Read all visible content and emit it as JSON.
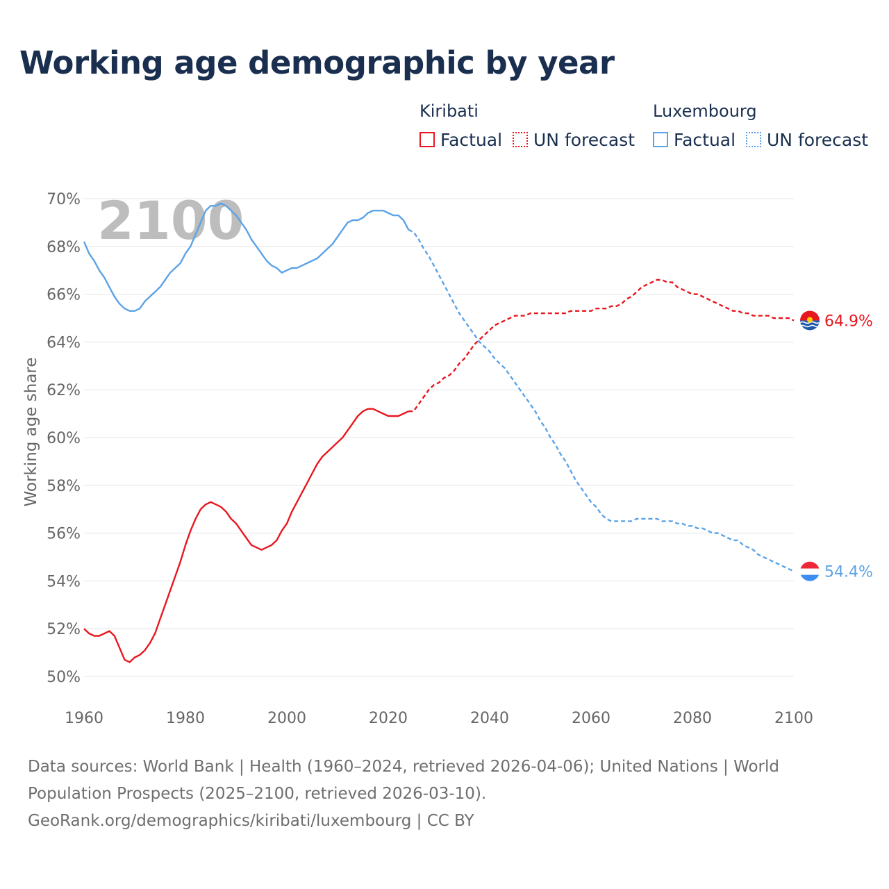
{
  "title": "Working age demographic by year",
  "legend": {
    "groups": [
      {
        "name": "Kiribati",
        "color": "#e8171f",
        "factual_label": "Factual",
        "forecast_label": "UN forecast"
      },
      {
        "name": "Luxembourg",
        "color": "#5ba3e6",
        "factual_label": "Factual",
        "forecast_label": "UN forecast"
      }
    ]
  },
  "footer": {
    "line1": "Data sources: World Bank | Health (1960–2024, retrieved 2026-04-06); United Nations | World",
    "line2": "Population Prospects (2025–2100, retrieved 2026-03-10).",
    "line3": "GeoRank.org/demographics/kiribati/luxembourg | CC BY"
  },
  "chart_data": {
    "type": "line",
    "title": "Working age demographic by year",
    "year_overlay": "2100",
    "xlabel": "",
    "ylabel": "Working age share",
    "xlim": [
      1960,
      2100
    ],
    "ylim": [
      49.5,
      70.5
    ],
    "x_ticks": [
      1960,
      1980,
      2000,
      2020,
      2040,
      2060,
      2080,
      2100
    ],
    "x_tick_labels": [
      "1960",
      "1980",
      "2000",
      "2020",
      "2040",
      "2060",
      "2080",
      "2100"
    ],
    "y_ticks": [
      50,
      52,
      54,
      56,
      58,
      60,
      62,
      64,
      66,
      68,
      70
    ],
    "y_tick_labels": [
      "50%",
      "52%",
      "54%",
      "56%",
      "58%",
      "60%",
      "62%",
      "64%",
      "66%",
      "68%",
      "70%"
    ],
    "factual_end_year": 2024,
    "series": [
      {
        "name": "Kiribati",
        "color": "#e8171f",
        "end_label": "64.9%",
        "points": [
          [
            1960,
            52.0
          ],
          [
            1961,
            51.8
          ],
          [
            1962,
            51.7
          ],
          [
            1963,
            51.7
          ],
          [
            1964,
            51.8
          ],
          [
            1965,
            51.9
          ],
          [
            1966,
            51.7
          ],
          [
            1967,
            51.2
          ],
          [
            1968,
            50.7
          ],
          [
            1969,
            50.6
          ],
          [
            1970,
            50.8
          ],
          [
            1971,
            50.9
          ],
          [
            1972,
            51.1
          ],
          [
            1973,
            51.4
          ],
          [
            1974,
            51.8
          ],
          [
            1975,
            52.4
          ],
          [
            1976,
            53.0
          ],
          [
            1977,
            53.6
          ],
          [
            1978,
            54.2
          ],
          [
            1979,
            54.8
          ],
          [
            1980,
            55.5
          ],
          [
            1981,
            56.1
          ],
          [
            1982,
            56.6
          ],
          [
            1983,
            57.0
          ],
          [
            1984,
            57.2
          ],
          [
            1985,
            57.3
          ],
          [
            1986,
            57.2
          ],
          [
            1987,
            57.1
          ],
          [
            1988,
            56.9
          ],
          [
            1989,
            56.6
          ],
          [
            1990,
            56.4
          ],
          [
            1991,
            56.1
          ],
          [
            1992,
            55.8
          ],
          [
            1993,
            55.5
          ],
          [
            1994,
            55.4
          ],
          [
            1995,
            55.3
          ],
          [
            1996,
            55.4
          ],
          [
            1997,
            55.5
          ],
          [
            1998,
            55.7
          ],
          [
            1999,
            56.1
          ],
          [
            2000,
            56.4
          ],
          [
            2001,
            56.9
          ],
          [
            2002,
            57.3
          ],
          [
            2003,
            57.7
          ],
          [
            2004,
            58.1
          ],
          [
            2005,
            58.5
          ],
          [
            2006,
            58.9
          ],
          [
            2007,
            59.2
          ],
          [
            2008,
            59.4
          ],
          [
            2009,
            59.6
          ],
          [
            2010,
            59.8
          ],
          [
            2011,
            60.0
          ],
          [
            2012,
            60.3
          ],
          [
            2013,
            60.6
          ],
          [
            2014,
            60.9
          ],
          [
            2015,
            61.1
          ],
          [
            2016,
            61.2
          ],
          [
            2017,
            61.2
          ],
          [
            2018,
            61.1
          ],
          [
            2019,
            61.0
          ],
          [
            2020,
            60.9
          ],
          [
            2021,
            60.9
          ],
          [
            2022,
            60.9
          ],
          [
            2023,
            61.0
          ],
          [
            2024,
            61.1
          ],
          [
            2025,
            61.1
          ],
          [
            2026,
            61.4
          ],
          [
            2027,
            61.7
          ],
          [
            2028,
            62.0
          ],
          [
            2029,
            62.2
          ],
          [
            2030,
            62.3
          ],
          [
            2031,
            62.5
          ],
          [
            2032,
            62.6
          ],
          [
            2033,
            62.8
          ],
          [
            2034,
            63.1
          ],
          [
            2035,
            63.3
          ],
          [
            2036,
            63.6
          ],
          [
            2037,
            63.9
          ],
          [
            2038,
            64.1
          ],
          [
            2039,
            64.3
          ],
          [
            2040,
            64.5
          ],
          [
            2041,
            64.7
          ],
          [
            2042,
            64.8
          ],
          [
            2043,
            64.9
          ],
          [
            2044,
            65.0
          ],
          [
            2045,
            65.1
          ],
          [
            2046,
            65.1
          ],
          [
            2047,
            65.1
          ],
          [
            2048,
            65.2
          ],
          [
            2049,
            65.2
          ],
          [
            2050,
            65.2
          ],
          [
            2051,
            65.2
          ],
          [
            2052,
            65.2
          ],
          [
            2053,
            65.2
          ],
          [
            2054,
            65.2
          ],
          [
            2055,
            65.2
          ],
          [
            2056,
            65.3
          ],
          [
            2057,
            65.3
          ],
          [
            2058,
            65.3
          ],
          [
            2059,
            65.3
          ],
          [
            2060,
            65.3
          ],
          [
            2061,
            65.4
          ],
          [
            2062,
            65.4
          ],
          [
            2063,
            65.4
          ],
          [
            2064,
            65.5
          ],
          [
            2065,
            65.5
          ],
          [
            2066,
            65.6
          ],
          [
            2067,
            65.8
          ],
          [
            2068,
            65.9
          ],
          [
            2069,
            66.1
          ],
          [
            2070,
            66.3
          ],
          [
            2071,
            66.4
          ],
          [
            2072,
            66.5
          ],
          [
            2073,
            66.6
          ],
          [
            2074,
            66.6
          ],
          [
            2075,
            66.5
          ],
          [
            2076,
            66.5
          ],
          [
            2077,
            66.3
          ],
          [
            2078,
            66.2
          ],
          [
            2079,
            66.1
          ],
          [
            2080,
            66.0
          ],
          [
            2081,
            66.0
          ],
          [
            2082,
            65.9
          ],
          [
            2083,
            65.8
          ],
          [
            2084,
            65.7
          ],
          [
            2085,
            65.6
          ],
          [
            2086,
            65.5
          ],
          [
            2087,
            65.4
          ],
          [
            2088,
            65.3
          ],
          [
            2089,
            65.3
          ],
          [
            2090,
            65.2
          ],
          [
            2091,
            65.2
          ],
          [
            2092,
            65.1
          ],
          [
            2093,
            65.1
          ],
          [
            2094,
            65.1
          ],
          [
            2095,
            65.1
          ],
          [
            2096,
            65.0
          ],
          [
            2097,
            65.0
          ],
          [
            2098,
            65.0
          ],
          [
            2099,
            65.0
          ],
          [
            2100,
            64.9
          ]
        ]
      },
      {
        "name": "Luxembourg",
        "color": "#5ba3e6",
        "end_label": "54.4%",
        "points": [
          [
            1960,
            68.2
          ],
          [
            1961,
            67.7
          ],
          [
            1962,
            67.4
          ],
          [
            1963,
            67.0
          ],
          [
            1964,
            66.7
          ],
          [
            1965,
            66.3
          ],
          [
            1966,
            65.9
          ],
          [
            1967,
            65.6
          ],
          [
            1968,
            65.4
          ],
          [
            1969,
            65.3
          ],
          [
            1970,
            65.3
          ],
          [
            1971,
            65.4
          ],
          [
            1972,
            65.7
          ],
          [
            1973,
            65.9
          ],
          [
            1974,
            66.1
          ],
          [
            1975,
            66.3
          ],
          [
            1976,
            66.6
          ],
          [
            1977,
            66.9
          ],
          [
            1978,
            67.1
          ],
          [
            1979,
            67.3
          ],
          [
            1980,
            67.7
          ],
          [
            1981,
            68.0
          ],
          [
            1982,
            68.5
          ],
          [
            1983,
            69.0
          ],
          [
            1984,
            69.5
          ],
          [
            1985,
            69.7
          ],
          [
            1986,
            69.7
          ],
          [
            1987,
            69.8
          ],
          [
            1988,
            69.7
          ],
          [
            1989,
            69.5
          ],
          [
            1990,
            69.3
          ],
          [
            1991,
            69.0
          ],
          [
            1992,
            68.7
          ],
          [
            1993,
            68.3
          ],
          [
            1994,
            68.0
          ],
          [
            1995,
            67.7
          ],
          [
            1996,
            67.4
          ],
          [
            1997,
            67.2
          ],
          [
            1998,
            67.1
          ],
          [
            1999,
            66.9
          ],
          [
            2000,
            67.0
          ],
          [
            2001,
            67.1
          ],
          [
            2002,
            67.1
          ],
          [
            2003,
            67.2
          ],
          [
            2004,
            67.3
          ],
          [
            2005,
            67.4
          ],
          [
            2006,
            67.5
          ],
          [
            2007,
            67.7
          ],
          [
            2008,
            67.9
          ],
          [
            2009,
            68.1
          ],
          [
            2010,
            68.4
          ],
          [
            2011,
            68.7
          ],
          [
            2012,
            69.0
          ],
          [
            2013,
            69.1
          ],
          [
            2014,
            69.1
          ],
          [
            2015,
            69.2
          ],
          [
            2016,
            69.4
          ],
          [
            2017,
            69.5
          ],
          [
            2018,
            69.5
          ],
          [
            2019,
            69.5
          ],
          [
            2020,
            69.4
          ],
          [
            2021,
            69.3
          ],
          [
            2022,
            69.3
          ],
          [
            2023,
            69.1
          ],
          [
            2024,
            68.7
          ],
          [
            2025,
            68.6
          ],
          [
            2026,
            68.3
          ],
          [
            2027,
            67.9
          ],
          [
            2028,
            67.6
          ],
          [
            2029,
            67.2
          ],
          [
            2030,
            66.8
          ],
          [
            2031,
            66.4
          ],
          [
            2032,
            66.0
          ],
          [
            2033,
            65.6
          ],
          [
            2034,
            65.2
          ],
          [
            2035,
            64.9
          ],
          [
            2036,
            64.6
          ],
          [
            2037,
            64.3
          ],
          [
            2038,
            64.0
          ],
          [
            2039,
            63.8
          ],
          [
            2040,
            63.6
          ],
          [
            2041,
            63.3
          ],
          [
            2042,
            63.1
          ],
          [
            2043,
            62.9
          ],
          [
            2044,
            62.6
          ],
          [
            2045,
            62.3
          ],
          [
            2046,
            62.0
          ],
          [
            2047,
            61.7
          ],
          [
            2048,
            61.4
          ],
          [
            2049,
            61.1
          ],
          [
            2050,
            60.7
          ],
          [
            2051,
            60.4
          ],
          [
            2052,
            60.0
          ],
          [
            2053,
            59.7
          ],
          [
            2054,
            59.3
          ],
          [
            2055,
            59.0
          ],
          [
            2056,
            58.6
          ],
          [
            2057,
            58.2
          ],
          [
            2058,
            57.9
          ],
          [
            2059,
            57.6
          ],
          [
            2060,
            57.3
          ],
          [
            2061,
            57.1
          ],
          [
            2062,
            56.8
          ],
          [
            2063,
            56.6
          ],
          [
            2064,
            56.5
          ],
          [
            2065,
            56.5
          ],
          [
            2066,
            56.5
          ],
          [
            2067,
            56.5
          ],
          [
            2068,
            56.5
          ],
          [
            2069,
            56.6
          ],
          [
            2070,
            56.6
          ],
          [
            2071,
            56.6
          ],
          [
            2072,
            56.6
          ],
          [
            2073,
            56.6
          ],
          [
            2074,
            56.5
          ],
          [
            2075,
            56.5
          ],
          [
            2076,
            56.5
          ],
          [
            2077,
            56.4
          ],
          [
            2078,
            56.4
          ],
          [
            2079,
            56.3
          ],
          [
            2080,
            56.3
          ],
          [
            2081,
            56.2
          ],
          [
            2082,
            56.2
          ],
          [
            2083,
            56.1
          ],
          [
            2084,
            56.0
          ],
          [
            2085,
            56.0
          ],
          [
            2086,
            55.9
          ],
          [
            2087,
            55.8
          ],
          [
            2088,
            55.7
          ],
          [
            2089,
            55.7
          ],
          [
            2090,
            55.5
          ],
          [
            2091,
            55.4
          ],
          [
            2092,
            55.3
          ],
          [
            2093,
            55.1
          ],
          [
            2094,
            55.0
          ],
          [
            2095,
            54.9
          ],
          [
            2096,
            54.8
          ],
          [
            2097,
            54.7
          ],
          [
            2098,
            54.6
          ],
          [
            2099,
            54.5
          ],
          [
            2100,
            54.4
          ]
        ]
      }
    ]
  }
}
